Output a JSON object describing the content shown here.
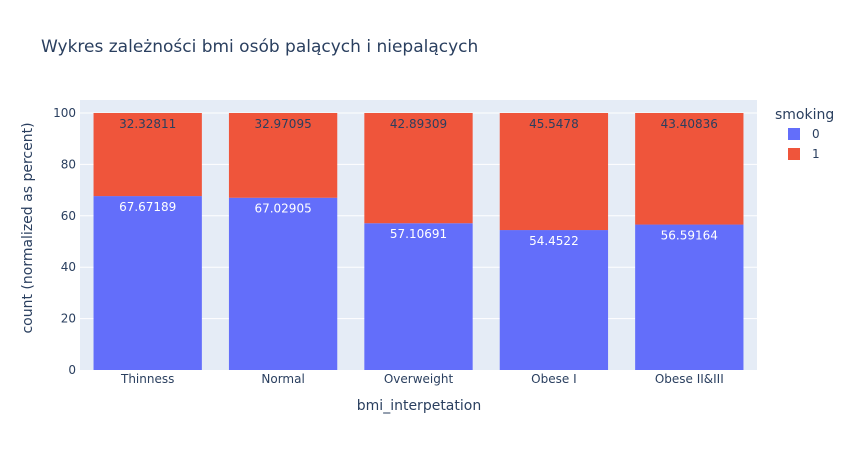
{
  "chart_data": {
    "type": "bar",
    "stacked": true,
    "title": "Wykres zależności bmi osób palących i niepalących",
    "xlabel": "bmi_interpetation",
    "ylabel": "count (normalized as percent)",
    "categories": [
      "Thinness",
      "Normal",
      "Overweight",
      "Obese I",
      "Obese II&III"
    ],
    "ylim": [
      0,
      100
    ],
    "yticks": [
      0,
      20,
      40,
      60,
      80,
      100
    ],
    "grid": true,
    "legend_title": "smoking",
    "legend_position": "top-right",
    "series": [
      {
        "name": "0",
        "color": "#636efa",
        "label_color": "#ffffff",
        "values": [
          67.67189,
          67.02905,
          57.10691,
          54.4522,
          56.59164
        ],
        "labels": [
          "67.67189",
          "67.02905",
          "57.10691",
          "54.4522",
          "56.59164"
        ]
      },
      {
        "name": "1",
        "color": "#ef553b",
        "label_color": "#2a3f5f",
        "values": [
          32.32811,
          32.97095,
          42.89309,
          45.5478,
          43.40836
        ],
        "labels": [
          "32.32811",
          "32.97095",
          "42.89309",
          "45.5478",
          "43.40836"
        ]
      }
    ],
    "plot_background": "#e5ecf6"
  }
}
